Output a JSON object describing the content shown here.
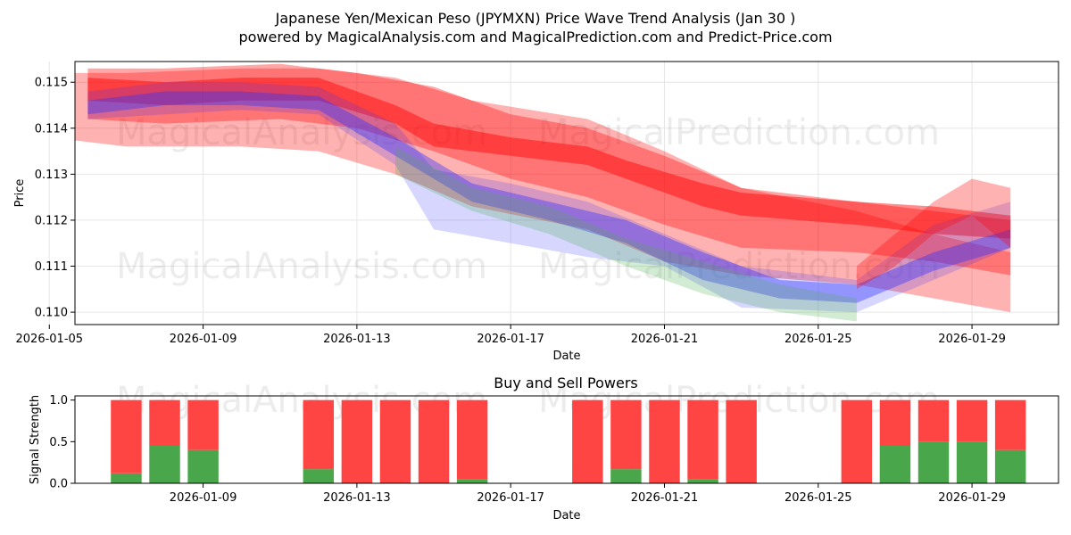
{
  "header": {
    "title": "Japanese Yen/Mexican Peso (JPYMXN) Price Wave Trend Analysis (Jan 30 )",
    "subtitle": "powered by MagicalAnalysis.com and MagicalPrediction.com and Predict-Price.com"
  },
  "watermarks": [
    "MagicalAnalysis.com",
    "MagicalPrediction.com"
  ],
  "colors": {
    "red": "#ff0000",
    "blue": "#3333ff",
    "green": "#4caf50",
    "buy": "#4aa64a",
    "sell": "#ff4444",
    "grid": "#e6e6e6",
    "axis": "#000000"
  },
  "chart_data": [
    {
      "type": "area",
      "title": "Japanese Yen/Mexican Peso (JPYMXN) Price Wave Trend Analysis (Jan 30 )",
      "xlabel": "Date",
      "ylabel": "Price",
      "ylim": [
        0.10973,
        0.11545
      ],
      "xlim": [
        "2026-01-05T16:00",
        "2026-01-31T06:00"
      ],
      "x_ticks": [
        "2026-01-05",
        "2026-01-09",
        "2026-01-13",
        "2026-01-17",
        "2026-01-21",
        "2026-01-25",
        "2026-01-29"
      ],
      "y_ticks": [
        0.11,
        0.111,
        0.112,
        0.113,
        0.114,
        0.115
      ],
      "y_tick_labels": [
        "0.110",
        "0.111",
        "0.112",
        "0.113",
        "0.114",
        "0.115"
      ],
      "grid": true,
      "series": [
        {
          "name": "red-wave-wide",
          "color": "red",
          "opacity": 0.3,
          "x": [
            "2026-01-05",
            "2026-01-07",
            "2026-01-10",
            "2026-01-12",
            "2026-01-14",
            "2026-01-16",
            "2026-01-19",
            "2026-01-21",
            "2026-01-23",
            "2026-01-26",
            "2026-01-28",
            "2026-01-30"
          ],
          "upper": [
            0.1152,
            0.1152,
            0.1153,
            0.1153,
            0.1151,
            0.1146,
            0.1142,
            0.1135,
            0.1127,
            0.1122,
            0.1117,
            0.1113
          ],
          "lower": [
            0.1138,
            0.1136,
            0.1136,
            0.1135,
            0.113,
            0.1123,
            0.1118,
            0.1111,
            0.1108,
            0.1106,
            0.1103,
            0.11
          ]
        },
        {
          "name": "red-wave-mid",
          "color": "red",
          "opacity": 0.35,
          "x": [
            "2026-01-06",
            "2026-01-08",
            "2026-01-11",
            "2026-01-13",
            "2026-01-15",
            "2026-01-17",
            "2026-01-19",
            "2026-01-21",
            "2026-01-23",
            "2026-01-26",
            "2026-01-28",
            "2026-01-30"
          ],
          "upper": [
            0.1153,
            0.1153,
            0.1154,
            0.1152,
            0.1149,
            0.1143,
            0.114,
            0.1134,
            0.1127,
            0.1124,
            0.1122,
            0.112
          ],
          "lower": [
            0.1142,
            0.1141,
            0.1142,
            0.114,
            0.1135,
            0.1129,
            0.1125,
            0.1119,
            0.1114,
            0.1113,
            0.1111,
            0.1108
          ]
        },
        {
          "name": "red-wave-core",
          "color": "red",
          "opacity": 0.45,
          "x": [
            "2026-01-06",
            "2026-01-08",
            "2026-01-10",
            "2026-01-12",
            "2026-01-14",
            "2026-01-15",
            "2026-01-17",
            "2026-01-19",
            "2026-01-20",
            "2026-01-22",
            "2026-01-23",
            "2026-01-26",
            "2026-01-28",
            "2026-01-30"
          ],
          "upper": [
            0.1151,
            0.115,
            0.1151,
            0.1151,
            0.1145,
            0.1141,
            0.1138,
            0.1136,
            0.1133,
            0.1128,
            0.1126,
            0.1124,
            0.1123,
            0.1121
          ],
          "lower": [
            0.1146,
            0.1145,
            0.1146,
            0.1146,
            0.1141,
            0.1136,
            0.1134,
            0.1132,
            0.1129,
            0.1123,
            0.1121,
            0.1119,
            0.1117,
            0.1116
          ]
        },
        {
          "name": "blue-wave-wide",
          "color": "blue",
          "opacity": 0.2,
          "x": [
            "2026-01-06",
            "2026-01-08",
            "2026-01-10",
            "2026-01-12",
            "2026-01-14",
            "2026-01-15",
            "2026-01-17",
            "2026-01-19",
            "2026-01-21",
            "2026-01-23",
            "2026-01-26",
            "2026-01-28",
            "2026-01-30"
          ],
          "upper": [
            0.1148,
            0.115,
            0.115,
            0.1149,
            0.1141,
            0.1131,
            0.1128,
            0.1124,
            0.1117,
            0.111,
            0.1107,
            0.1119,
            0.1124
          ],
          "lower": [
            0.1142,
            0.1143,
            0.1144,
            0.1143,
            0.1132,
            0.1118,
            0.1115,
            0.1112,
            0.111,
            0.1101,
            0.11,
            0.1107,
            0.1114
          ]
        },
        {
          "name": "blue-wave-core",
          "color": "blue",
          "opacity": 0.4,
          "x": [
            "2026-01-06",
            "2026-01-08",
            "2026-01-10",
            "2026-01-12",
            "2026-01-14",
            "2026-01-16",
            "2026-01-18",
            "2026-01-20",
            "2026-01-22",
            "2026-01-24",
            "2026-01-26",
            "2026-01-28",
            "2026-01-30"
          ],
          "upper": [
            0.1146,
            0.1148,
            0.1148,
            0.1147,
            0.1138,
            0.1128,
            0.1124,
            0.112,
            0.1113,
            0.1107,
            0.1106,
            0.1113,
            0.1118
          ],
          "lower": [
            0.1143,
            0.1145,
            0.1145,
            0.1144,
            0.1134,
            0.1124,
            0.112,
            0.1115,
            0.1107,
            0.1103,
            0.1102,
            0.1109,
            0.1114
          ]
        },
        {
          "name": "green-wave",
          "color": "green",
          "opacity": 0.25,
          "x": [
            "2026-01-14",
            "2026-01-16",
            "2026-01-18",
            "2026-01-20",
            "2026-01-22",
            "2026-01-24",
            "2026-01-26"
          ],
          "upper": [
            0.1136,
            0.1127,
            0.1123,
            0.1116,
            0.1111,
            0.1106,
            0.1103
          ],
          "lower": [
            0.113,
            0.1122,
            0.1117,
            0.111,
            0.1104,
            0.11,
            0.1098
          ]
        },
        {
          "name": "tail-wave",
          "color": "red",
          "opacity": 0.3,
          "x": [
            "2026-01-26",
            "2026-01-27",
            "2026-01-28",
            "2026-01-29",
            "2026-01-30"
          ],
          "upper": [
            0.111,
            0.1117,
            0.1124,
            0.1129,
            0.1127
          ],
          "lower": [
            0.1105,
            0.111,
            0.1117,
            0.1121,
            0.1114
          ]
        }
      ]
    },
    {
      "type": "bar",
      "title": "Buy and Sell Powers",
      "xlabel": "Date",
      "ylabel": "Signal Strength",
      "ylim": [
        0,
        1.05
      ],
      "xlim": [
        "2026-01-05T16:00",
        "2026-01-31T06:00"
      ],
      "x_ticks": [
        "2026-01-09",
        "2026-01-13",
        "2026-01-17",
        "2026-01-21",
        "2026-01-25",
        "2026-01-29"
      ],
      "y_ticks": [
        0.0,
        0.5,
        1.0
      ],
      "y_tick_labels": [
        "0.0",
        "0.5",
        "1.0"
      ],
      "categories": [
        "2026-01-07",
        "2026-01-08",
        "2026-01-09",
        "2026-01-12",
        "2026-01-13",
        "2026-01-14",
        "2026-01-15",
        "2026-01-16",
        "2026-01-19",
        "2026-01-20",
        "2026-01-21",
        "2026-01-22",
        "2026-01-23",
        "2026-01-26",
        "2026-01-27",
        "2026-01-28",
        "2026-01-29",
        "2026-01-30"
      ],
      "series": [
        {
          "name": "Buy",
          "color": "buy",
          "values": [
            0.12,
            0.45,
            0.4,
            0.17,
            0.0,
            0.0,
            0.0,
            0.05,
            0.0,
            0.17,
            0.0,
            0.05,
            0.0,
            0.0,
            0.45,
            0.5,
            0.5,
            0.4
          ]
        },
        {
          "name": "Sell",
          "color": "sell",
          "values": [
            0.88,
            0.55,
            0.6,
            0.83,
            1.0,
            1.0,
            1.0,
            0.95,
            1.0,
            0.83,
            1.0,
            0.95,
            1.0,
            1.0,
            0.55,
            0.5,
            0.5,
            0.6
          ]
        }
      ]
    }
  ]
}
